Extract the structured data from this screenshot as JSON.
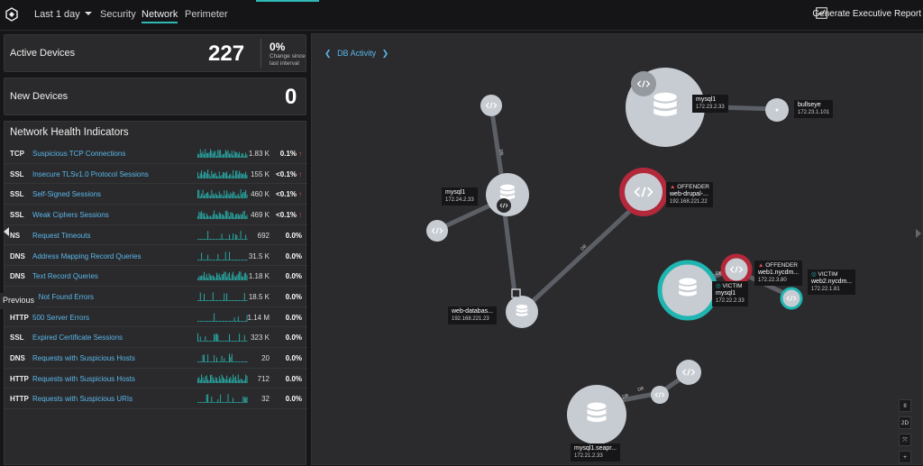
{
  "topbar": {
    "time_range": "Last 1 day",
    "tabs": [
      "Security",
      "Network",
      "Perimeter"
    ],
    "active_tab": "Network",
    "report_button": "Generate Executive Report"
  },
  "active_devices": {
    "label": "Active Devices",
    "value": "227",
    "change_pct": "0%",
    "change_note": "Change since last interval"
  },
  "new_devices": {
    "label": "New Devices",
    "value": "0"
  },
  "health": {
    "title": "Network Health Indicators",
    "rows": [
      {
        "proto": "TCP",
        "name": "Suspicious TCP Connections",
        "count": "1.83 K",
        "rate": "0.1%",
        "up": true
      },
      {
        "proto": "SSL",
        "name": "Insecure TLSv1.0 Protocol Sessions",
        "count": "155 K",
        "rate": "<0.1%",
        "up": true
      },
      {
        "proto": "SSL",
        "name": "Self-Signed Sessions",
        "count": "460 K",
        "rate": "<0.1%",
        "up": true
      },
      {
        "proto": "SSL",
        "name": "Weak Ciphers Sessions",
        "count": "469 K",
        "rate": "<0.1%",
        "up": true
      },
      {
        "proto": "NS",
        "name": "Request Timeouts",
        "count": "692",
        "rate": "0.0%",
        "up": false
      },
      {
        "proto": "DNS",
        "name": "Address Mapping Record Queries",
        "count": "31.5 K",
        "rate": "0.0%",
        "up": false
      },
      {
        "proto": "DNS",
        "name": "Text Record Queries",
        "count": "1.18 K",
        "rate": "0.0%",
        "up": false
      },
      {
        "proto": "",
        "name": "4 Not Found Errors",
        "count": "18.5 K",
        "rate": "0.0%",
        "up": false
      },
      {
        "proto": "HTTP",
        "name": "500 Server Errors",
        "count": "1.14 M",
        "rate": "0.0%",
        "up": false
      },
      {
        "proto": "SSL",
        "name": "Expired Certificate Sessions",
        "count": "323 K",
        "rate": "0.0%",
        "up": false
      },
      {
        "proto": "DNS",
        "name": "Requests with Suspicious Hosts",
        "count": "20",
        "rate": "0.0%",
        "up": false
      },
      {
        "proto": "HTTP",
        "name": "Requests with Suspicious Hosts",
        "count": "712",
        "rate": "0.0%",
        "up": false
      },
      {
        "proto": "HTTP",
        "name": "Requests with Suspicious URIs",
        "count": "32",
        "rate": "0.0%",
        "up": false
      }
    ]
  },
  "previous_label": "Previous",
  "graph": {
    "title": "DB Activity",
    "edge_label": "DB",
    "controls": [
      "II",
      "2D",
      "⤧",
      "+"
    ],
    "nodes": [
      {
        "name": "mysql1",
        "ip": "172.23.2.33"
      },
      {
        "name": "bullseye",
        "ip": "172.23.1.101"
      },
      {
        "name": "mysql1",
        "ip": "172.24.2.33"
      },
      {
        "name": "web-drupal-...",
        "ip": "192.168.221.22",
        "badge": "OFFENDER"
      },
      {
        "name": "web1.nycdm...",
        "ip": "172.22.3.80",
        "badge": "OFFENDER"
      },
      {
        "name": "web2.nycdm...",
        "ip": "172.22.1.81",
        "badge": "VICTIM"
      },
      {
        "name": "mysql1",
        "ip": "172.22.2.33",
        "badge": "VICTIM"
      },
      {
        "name": "web-databas...",
        "ip": "192.168.221.23"
      },
      {
        "name": "mysql1.seapr...",
        "ip": "172.21.2.33"
      }
    ]
  }
}
